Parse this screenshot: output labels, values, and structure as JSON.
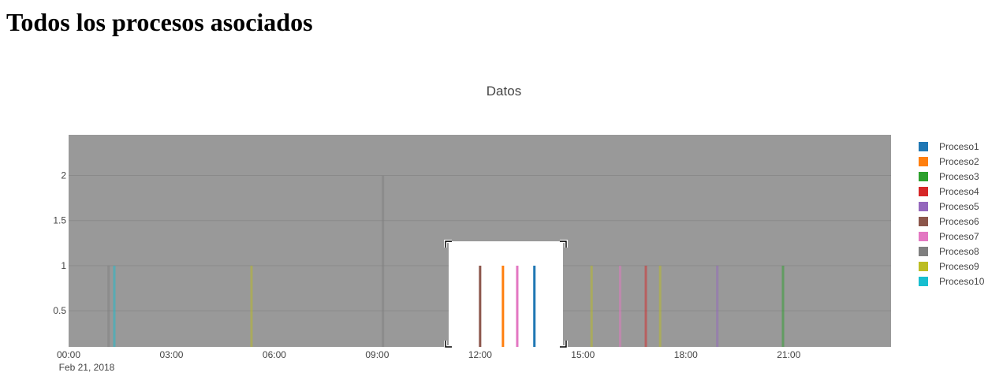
{
  "page": {
    "title": "Todos los procesos asociados"
  },
  "colors": {
    "plot_background": "#999999",
    "grid": "#8a8a8a",
    "selection_box": "#ffffff"
  },
  "chart_data": {
    "type": "bar",
    "title": "Datos",
    "xlabel": "",
    "ylabel": "",
    "x_axis_type": "date",
    "x_range": [
      "2018-02-21 00:00",
      "2018-02-21 23:59"
    ],
    "ylim": [
      0.1,
      2.45
    ],
    "grid": true,
    "legend_position": "right",
    "x_ticks": [
      "00:00",
      "03:00",
      "06:00",
      "09:00",
      "12:00",
      "15:00",
      "18:00",
      "21:00"
    ],
    "x_tick_date_label": "Feb 21, 2018",
    "y_ticks": [
      "0.5",
      "1",
      "1.5",
      "2"
    ],
    "y_tick_values": [
      0.5,
      1,
      1.5,
      2
    ],
    "selection_range": [
      "2018-02-21 11:05",
      "2018-02-21 14:25"
    ],
    "selection_top": 1.27,
    "series": [
      {
        "name": "Proceso1",
        "color": "#1f77b4",
        "points": [
          {
            "x": "2018-02-21 13:35",
            "y": 1
          }
        ]
      },
      {
        "name": "Proceso2",
        "color": "#ff7f0e",
        "points": [
          {
            "x": "2018-02-21 12:40",
            "y": 1
          }
        ]
      },
      {
        "name": "Proceso3",
        "color": "#2ca02c",
        "points": [
          {
            "x": "2018-02-21 20:50",
            "y": 1
          }
        ]
      },
      {
        "name": "Proceso4",
        "color": "#d62728",
        "points": [
          {
            "x": "2018-02-21 16:50",
            "y": 1
          }
        ]
      },
      {
        "name": "Proceso5",
        "color": "#9467bd",
        "points": [
          {
            "x": "2018-02-21 18:55",
            "y": 1
          }
        ]
      },
      {
        "name": "Proceso6",
        "color": "#8c564b",
        "points": [
          {
            "x": "2018-02-21 12:00",
            "y": 1
          }
        ]
      },
      {
        "name": "Proceso7",
        "color": "#e377c2",
        "points": [
          {
            "x": "2018-02-21 16:05",
            "y": 1
          },
          {
            "x": "2018-02-21 13:05",
            "y": 1
          }
        ]
      },
      {
        "name": "Proceso8",
        "color": "#7f7f7f",
        "points": [
          {
            "x": "2018-02-21 01:10",
            "y": 1
          },
          {
            "x": "2018-02-21 09:10",
            "y": 2
          }
        ]
      },
      {
        "name": "Proceso9",
        "color": "#bcbd22",
        "points": [
          {
            "x": "2018-02-21 05:20",
            "y": 1
          },
          {
            "x": "2018-02-21 15:15",
            "y": 1
          },
          {
            "x": "2018-02-21 17:15",
            "y": 1
          }
        ]
      },
      {
        "name": "Proceso10",
        "color": "#17becf",
        "points": [
          {
            "x": "2018-02-21 01:20",
            "y": 1
          }
        ]
      }
    ]
  }
}
